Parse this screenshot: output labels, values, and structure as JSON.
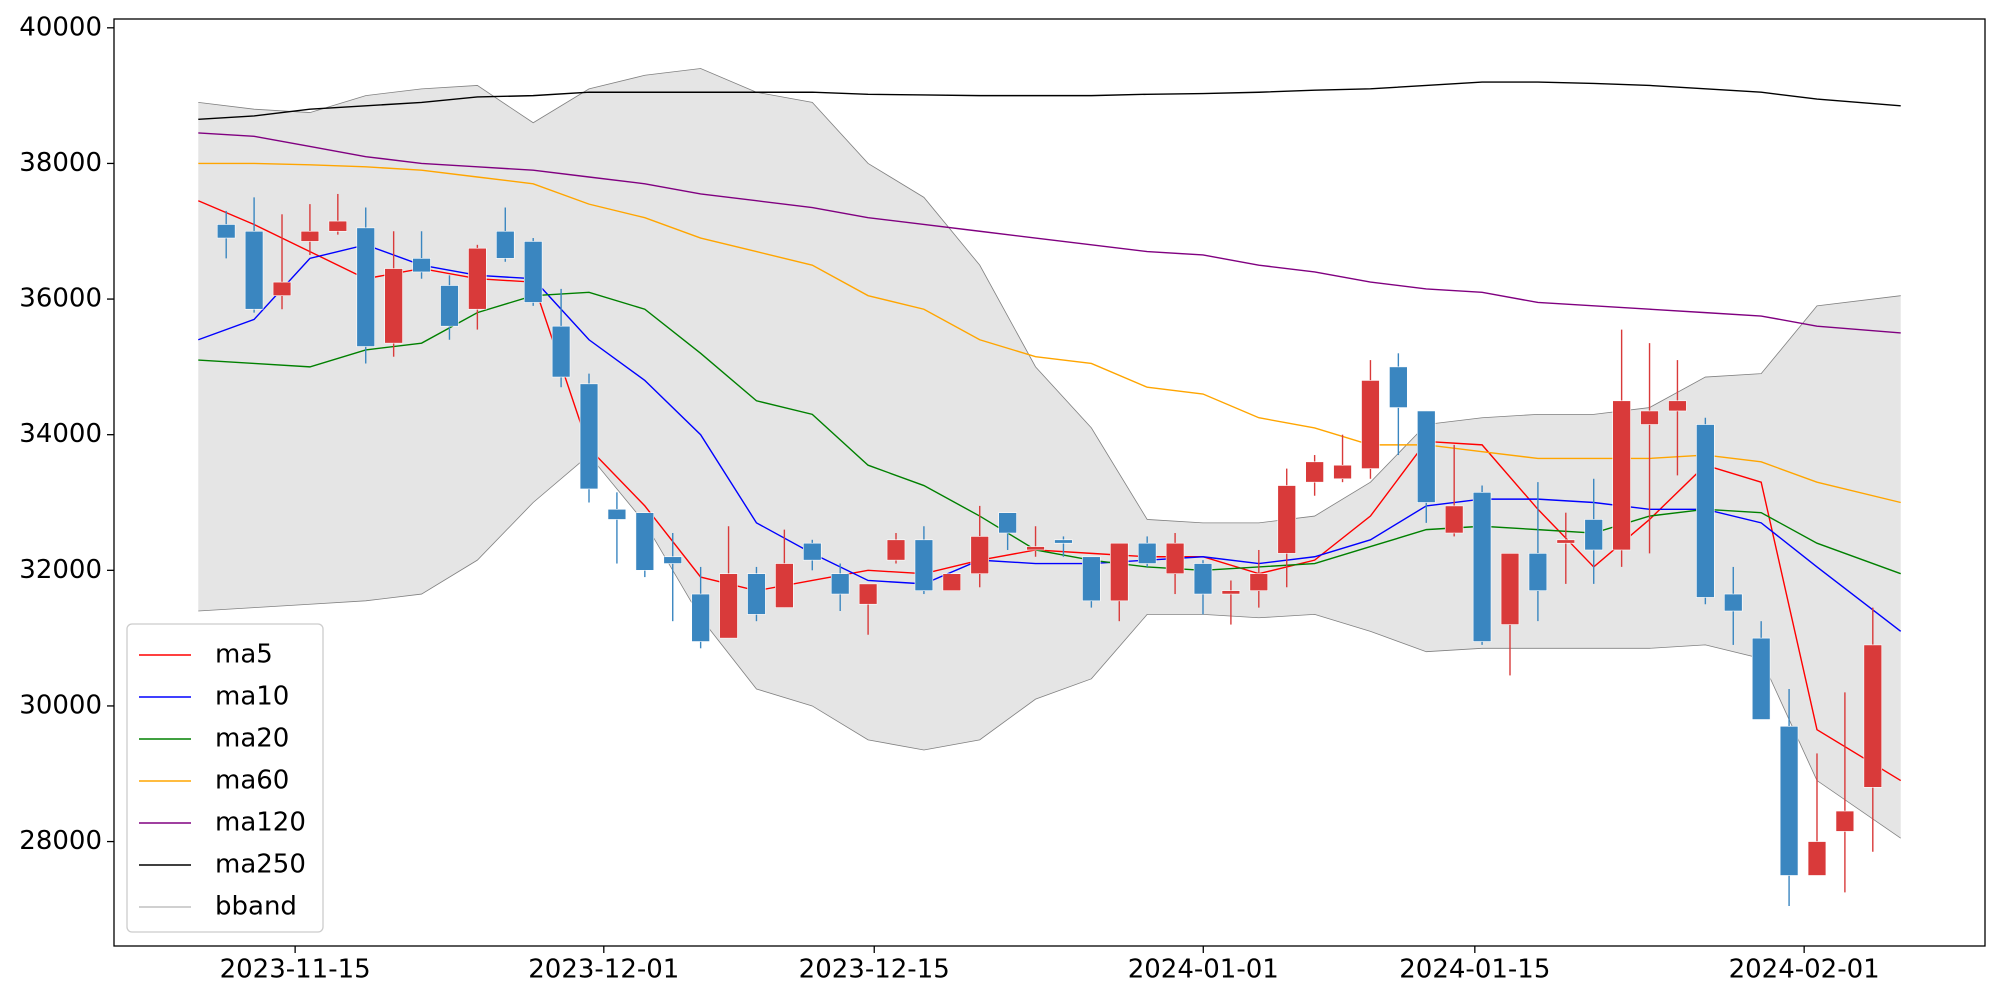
{
  "chart_data": {
    "type": "candlestick",
    "xlim": [
      -4.02,
      63.02
    ],
    "ylim": [
      26460,
      40130
    ],
    "xticks": [
      {
        "value": 2.47,
        "label": "2023-11-15"
      },
      {
        "value": 13.53,
        "label": "2023-12-01"
      },
      {
        "value": 23.22,
        "label": "2023-12-15"
      },
      {
        "value": 35.01,
        "label": "2024-01-01"
      },
      {
        "value": 44.74,
        "label": "2024-01-15"
      },
      {
        "value": 56.54,
        "label": "2024-02-01"
      }
    ],
    "yticks": [
      28000,
      30000,
      32000,
      34000,
      36000,
      38000,
      40000
    ],
    "up_color": "#d93a3a",
    "down_color": "#3a86c0",
    "legend": "lower left",
    "x": [
      0,
      1,
      2,
      3,
      4,
      5,
      6,
      7,
      8,
      9,
      10,
      11,
      12,
      13,
      14,
      15,
      16,
      17,
      18,
      19,
      20,
      21,
      22,
      23,
      24,
      25,
      26,
      27,
      28,
      29,
      30,
      31,
      32,
      33,
      34,
      35,
      36,
      37,
      38,
      39,
      40,
      41,
      42,
      43,
      44,
      45,
      46,
      47,
      48,
      49,
      50,
      51,
      52,
      53,
      54,
      55,
      56,
      57,
      58,
      59
    ],
    "open": [
      37100,
      37000,
      36050,
      36850,
      37000,
      37050,
      35350,
      36600,
      36200,
      35850,
      37000,
      36850,
      35600,
      34750,
      32900,
      32850,
      32200,
      31650,
      31000,
      31950,
      31450,
      32400,
      31950,
      31500,
      32150,
      32450,
      31700,
      31950,
      32850,
      32300,
      32450,
      32200,
      31550,
      32400,
      31950,
      32100,
      31650,
      31700,
      32250,
      33300,
      33350,
      33500,
      35000,
      34350,
      32550,
      33150,
      31200,
      32250,
      32400,
      32750,
      32300,
      34150,
      34350,
      34150,
      31650,
      31000,
      29700,
      27500,
      28150,
      28800
    ],
    "high": [
      37300,
      37500,
      37250,
      37400,
      37550,
      37350,
      37000,
      37000,
      36350,
      36800,
      37350,
      36900,
      36150,
      34900,
      33150,
      32850,
      32550,
      32050,
      32650,
      32050,
      32600,
      32450,
      32100,
      31800,
      32550,
      32650,
      31950,
      32950,
      32850,
      32650,
      32500,
      32200,
      32400,
      32500,
      32550,
      32150,
      31850,
      32300,
      33500,
      33700,
      34000,
      35100,
      35200,
      34350,
      33850,
      33250,
      32250,
      33300,
      32850,
      33350,
      35550,
      35350,
      35100,
      34250,
      32050,
      31250,
      30250,
      29300,
      30200,
      31450
    ],
    "low": [
      36600,
      35800,
      35850,
      36650,
      36950,
      35050,
      35150,
      36300,
      35400,
      35550,
      36550,
      35900,
      34700,
      33000,
      32100,
      31900,
      31250,
      30850,
      31000,
      31250,
      31450,
      32000,
      31400,
      31050,
      32100,
      31650,
      31700,
      31750,
      32300,
      32200,
      32200,
      31450,
      31250,
      32050,
      31650,
      31350,
      31200,
      31450,
      31750,
      33100,
      33300,
      33350,
      33700,
      32700,
      32500,
      30900,
      30450,
      31250,
      31800,
      31800,
      32050,
      32250,
      33400,
      31500,
      30900,
      29800,
      27050,
      27500,
      27250,
      27850
    ],
    "close": [
      36900,
      35850,
      36250,
      37000,
      37150,
      35300,
      36450,
      36400,
      35600,
      36750,
      36600,
      35950,
      34850,
      33200,
      32750,
      32000,
      32100,
      30950,
      31950,
      31350,
      32100,
      32150,
      31650,
      31800,
      32450,
      31700,
      31950,
      32500,
      32550,
      32350,
      32400,
      31550,
      32400,
      32100,
      32400,
      31650,
      31700,
      31950,
      33250,
      33600,
      33550,
      34800,
      34400,
      33000,
      32950,
      30950,
      32250,
      31700,
      32450,
      32300,
      34500,
      34350,
      34500,
      31600,
      31400,
      29800,
      27500,
      28000,
      28450,
      30900
    ],
    "series": [
      {
        "name": "ma5",
        "color": "#ff0000",
        "x": [
          -1,
          1,
          3,
          5,
          7,
          9,
          11,
          13,
          15,
          17,
          19,
          21,
          23,
          25,
          27,
          29,
          31,
          33,
          35,
          37,
          39,
          41,
          43,
          45,
          47,
          49,
          51,
          53,
          55,
          57,
          60
        ],
        "values": [
          37450,
          37100,
          36700,
          36300,
          36450,
          36300,
          36250,
          33800,
          32950,
          31900,
          31700,
          31850,
          32000,
          31950,
          32150,
          32300,
          32250,
          32200,
          32200,
          31950,
          32150,
          32800,
          33900,
          33850,
          32900,
          32050,
          32750,
          33550,
          33300,
          29650,
          28900
        ]
      },
      {
        "name": "ma10",
        "color": "#0000ff",
        "x": [
          -1,
          1,
          3,
          5,
          7,
          9,
          11,
          13,
          15,
          17,
          19,
          21,
          23,
          25,
          27,
          29,
          31,
          33,
          35,
          37,
          39,
          41,
          43,
          45,
          47,
          49,
          51,
          53,
          55,
          57,
          60
        ],
        "values": [
          35400,
          35700,
          36600,
          36800,
          36500,
          36350,
          36300,
          35400,
          34800,
          34000,
          32700,
          32250,
          31850,
          31800,
          32150,
          32100,
          32100,
          32150,
          32200,
          32100,
          32200,
          32450,
          32950,
          33050,
          33050,
          33000,
          32900,
          32900,
          32700,
          32050,
          31100
        ]
      },
      {
        "name": "ma20",
        "color": "#008000",
        "x": [
          -1,
          1,
          3,
          5,
          7,
          9,
          11,
          13,
          15,
          17,
          19,
          21,
          23,
          25,
          27,
          29,
          31,
          33,
          35,
          37,
          39,
          41,
          43,
          45,
          47,
          49,
          51,
          53,
          55,
          57,
          60
        ],
        "values": [
          35100,
          35050,
          35000,
          35250,
          35350,
          35800,
          36050,
          36100,
          35850,
          35200,
          34500,
          34300,
          33550,
          33250,
          32800,
          32300,
          32150,
          32050,
          32000,
          32050,
          32100,
          32350,
          32600,
          32650,
          32600,
          32550,
          32800,
          32900,
          32850,
          32400,
          31950
        ]
      },
      {
        "name": "ma60",
        "color": "#ffa500",
        "x": [
          -1,
          1,
          3,
          5,
          7,
          9,
          11,
          13,
          15,
          17,
          19,
          21,
          23,
          25,
          27,
          29,
          31,
          33,
          35,
          37,
          39,
          41,
          43,
          45,
          47,
          49,
          51,
          53,
          55,
          57,
          60
        ],
        "values": [
          38000,
          38000,
          37980,
          37950,
          37900,
          37800,
          37700,
          37400,
          37200,
          36900,
          36700,
          36500,
          36050,
          35850,
          35400,
          35150,
          35050,
          34700,
          34600,
          34250,
          34100,
          33850,
          33850,
          33750,
          33650,
          33650,
          33650,
          33700,
          33600,
          33300,
          33000
        ]
      },
      {
        "name": "ma120",
        "color": "#800080",
        "x": [
          -1,
          1,
          3,
          5,
          7,
          9,
          11,
          13,
          15,
          17,
          19,
          21,
          23,
          25,
          27,
          29,
          31,
          33,
          35,
          37,
          39,
          41,
          43,
          45,
          47,
          49,
          51,
          53,
          55,
          57,
          60
        ],
        "values": [
          38450,
          38400,
          38250,
          38100,
          38000,
          37950,
          37900,
          37800,
          37700,
          37550,
          37450,
          37350,
          37200,
          37100,
          37000,
          36900,
          36800,
          36700,
          36650,
          36500,
          36400,
          36250,
          36150,
          36100,
          35950,
          35900,
          35850,
          35800,
          35750,
          35600,
          35500
        ]
      },
      {
        "name": "ma250",
        "color": "#000000",
        "x": [
          -1,
          1,
          3,
          5,
          7,
          9,
          11,
          13,
          15,
          17,
          19,
          21,
          23,
          25,
          27,
          29,
          31,
          33,
          35,
          37,
          39,
          41,
          43,
          45,
          47,
          49,
          51,
          53,
          55,
          57,
          60
        ],
        "values": [
          38650,
          38700,
          38800,
          38850,
          38900,
          38980,
          39000,
          39050,
          39050,
          39050,
          39050,
          39050,
          39020,
          39010,
          39000,
          39000,
          39000,
          39020,
          39030,
          39050,
          39080,
          39100,
          39150,
          39200,
          39200,
          39180,
          39150,
          39100,
          39050,
          38950,
          38850
        ]
      }
    ],
    "bband": {
      "name": "bband",
      "color": "#808080",
      "fill": "#e5e5e5",
      "x": [
        -1,
        1,
        3,
        5,
        7,
        9,
        11,
        13,
        15,
        17,
        19,
        21,
        23,
        25,
        27,
        29,
        31,
        33,
        35,
        37,
        39,
        41,
        43,
        45,
        47,
        49,
        51,
        53,
        55,
        57,
        60
      ],
      "upper": [
        38900,
        38800,
        38750,
        39000,
        39100,
        39150,
        38600,
        39100,
        39300,
        39400,
        39050,
        38900,
        38000,
        37500,
        36500,
        35000,
        34100,
        32750,
        32700,
        32700,
        32800,
        33300,
        34150,
        34250,
        34300,
        34300,
        34400,
        34850,
        34900,
        35900,
        36050
      ],
      "lower": [
        31400,
        31450,
        31500,
        31550,
        31650,
        32150,
        33000,
        33700,
        32700,
        31300,
        30250,
        30000,
        29500,
        29350,
        29500,
        30100,
        30400,
        31350,
        31350,
        31300,
        31350,
        31100,
        30800,
        30850,
        30850,
        30850,
        30850,
        30900,
        30700,
        28900,
        28050
      ]
    }
  }
}
